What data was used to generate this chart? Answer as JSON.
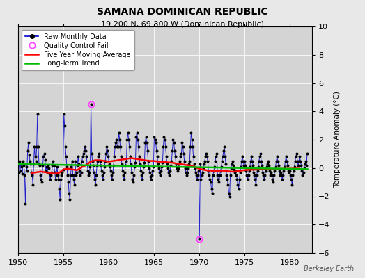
{
  "title": "SAMANA DOMINICAN REPUBLIC",
  "subtitle": "19.200 N, 69.300 W (Dominican Republic)",
  "ylabel": "Temperature Anomaly (°C)",
  "watermark": "Berkeley Earth",
  "xlim": [
    1950,
    1982.5
  ],
  "ylim": [
    -6,
    10
  ],
  "yticks": [
    -6,
    -4,
    -2,
    0,
    2,
    4,
    6,
    8,
    10
  ],
  "xticks": [
    1950,
    1955,
    1960,
    1965,
    1970,
    1975,
    1980
  ],
  "outer_bg": "#e8e8e8",
  "plot_bg": "#d4d4d4",
  "raw_color": "#0000cc",
  "dot_color": "#000000",
  "moving_avg_color": "#ff0000",
  "trend_color": "#00bb00",
  "qc_fail_color": "#ff44ff",
  "raw_data_years": [
    1950.042,
    1950.125,
    1950.208,
    1950.292,
    1950.375,
    1950.458,
    1950.542,
    1950.625,
    1950.708,
    1950.792,
    1950.875,
    1950.958,
    1951.042,
    1951.125,
    1951.208,
    1951.292,
    1951.375,
    1951.458,
    1951.542,
    1951.625,
    1951.708,
    1951.792,
    1951.875,
    1951.958,
    1952.042,
    1952.125,
    1952.208,
    1952.292,
    1952.375,
    1952.458,
    1952.542,
    1952.625,
    1952.708,
    1952.792,
    1952.875,
    1952.958,
    1953.042,
    1953.125,
    1953.208,
    1953.292,
    1953.375,
    1953.458,
    1953.542,
    1953.625,
    1953.708,
    1953.792,
    1953.875,
    1953.958,
    1954.042,
    1954.125,
    1954.208,
    1954.292,
    1954.375,
    1954.458,
    1954.542,
    1954.625,
    1954.708,
    1954.792,
    1954.875,
    1954.958,
    1955.042,
    1955.125,
    1955.208,
    1955.292,
    1955.375,
    1955.458,
    1955.542,
    1955.625,
    1955.708,
    1955.792,
    1955.875,
    1955.958,
    1956.042,
    1956.125,
    1956.208,
    1956.292,
    1956.375,
    1956.458,
    1956.542,
    1956.625,
    1956.708,
    1956.792,
    1956.875,
    1956.958,
    1957.042,
    1957.125,
    1957.208,
    1957.292,
    1957.375,
    1957.458,
    1957.542,
    1957.625,
    1957.708,
    1957.792,
    1957.875,
    1957.958,
    1958.042,
    1958.125,
    1958.208,
    1958.292,
    1958.375,
    1958.458,
    1958.542,
    1958.625,
    1958.708,
    1958.792,
    1958.875,
    1958.958,
    1959.042,
    1959.125,
    1959.208,
    1959.292,
    1959.375,
    1959.458,
    1959.542,
    1959.625,
    1959.708,
    1959.792,
    1959.875,
    1959.958,
    1960.042,
    1960.125,
    1960.208,
    1960.292,
    1960.375,
    1960.458,
    1960.542,
    1960.625,
    1960.708,
    1960.792,
    1960.875,
    1960.958,
    1961.042,
    1961.125,
    1961.208,
    1961.292,
    1961.375,
    1961.458,
    1961.542,
    1961.625,
    1961.708,
    1961.792,
    1961.875,
    1961.958,
    1962.042,
    1962.125,
    1962.208,
    1962.292,
    1962.375,
    1962.458,
    1962.542,
    1962.625,
    1962.708,
    1962.792,
    1962.875,
    1962.958,
    1963.042,
    1963.125,
    1963.208,
    1963.292,
    1963.375,
    1963.458,
    1963.542,
    1963.625,
    1963.708,
    1963.792,
    1963.875,
    1963.958,
    1964.042,
    1964.125,
    1964.208,
    1964.292,
    1964.375,
    1964.458,
    1964.542,
    1964.625,
    1964.708,
    1964.792,
    1964.875,
    1964.958,
    1965.042,
    1965.125,
    1965.208,
    1965.292,
    1965.375,
    1965.458,
    1965.542,
    1965.625,
    1965.708,
    1965.792,
    1965.875,
    1965.958,
    1966.042,
    1966.125,
    1966.208,
    1966.292,
    1966.375,
    1966.458,
    1966.542,
    1966.625,
    1966.708,
    1966.792,
    1966.875,
    1966.958,
    1967.042,
    1967.125,
    1967.208,
    1967.292,
    1967.375,
    1967.458,
    1967.542,
    1967.625,
    1967.708,
    1967.792,
    1967.875,
    1967.958,
    1968.042,
    1968.125,
    1968.208,
    1968.292,
    1968.375,
    1968.458,
    1968.542,
    1968.625,
    1968.708,
    1968.792,
    1968.875,
    1968.958,
    1969.042,
    1969.125,
    1969.208,
    1969.292,
    1969.375,
    1969.458,
    1969.542,
    1969.625,
    1969.708,
    1969.792,
    1969.875,
    1969.958,
    1970.042,
    1970.125,
    1970.208,
    1970.292,
    1970.375,
    1970.458,
    1970.542,
    1970.625,
    1970.708,
    1970.792,
    1970.875,
    1970.958,
    1971.042,
    1971.125,
    1971.208,
    1971.292,
    1971.375,
    1971.458,
    1971.542,
    1971.625,
    1971.708,
    1971.792,
    1971.875,
    1971.958,
    1972.042,
    1972.125,
    1972.208,
    1972.292,
    1972.375,
    1972.458,
    1972.542,
    1972.625,
    1972.708,
    1972.792,
    1972.875,
    1972.958,
    1973.042,
    1973.125,
    1973.208,
    1973.292,
    1973.375,
    1973.458,
    1973.542,
    1973.625,
    1973.708,
    1973.792,
    1973.875,
    1973.958,
    1974.042,
    1974.125,
    1974.208,
    1974.292,
    1974.375,
    1974.458,
    1974.542,
    1974.625,
    1974.708,
    1974.792,
    1974.875,
    1974.958,
    1975.042,
    1975.125,
    1975.208,
    1975.292,
    1975.375,
    1975.458,
    1975.542,
    1975.625,
    1975.708,
    1975.792,
    1975.875,
    1975.958,
    1976.042,
    1976.125,
    1976.208,
    1976.292,
    1976.375,
    1976.458,
    1976.542,
    1976.625,
    1976.708,
    1976.792,
    1976.875,
    1976.958,
    1977.042,
    1977.125,
    1977.208,
    1977.292,
    1977.375,
    1977.458,
    1977.542,
    1977.625,
    1977.708,
    1977.792,
    1977.875,
    1977.958,
    1978.042,
    1978.125,
    1978.208,
    1978.292,
    1978.375,
    1978.458,
    1978.542,
    1978.625,
    1978.708,
    1978.792,
    1978.875,
    1978.958,
    1979.042,
    1979.125,
    1979.208,
    1979.292,
    1979.375,
    1979.458,
    1979.542,
    1979.625,
    1979.708,
    1979.792,
    1979.875,
    1979.958,
    1980.042,
    1980.125,
    1980.208,
    1980.292,
    1980.375,
    1980.458,
    1980.542,
    1980.625,
    1980.708,
    1980.792,
    1980.875,
    1980.958,
    1981.042,
    1981.125,
    1981.208,
    1981.292,
    1981.375,
    1981.458,
    1981.542,
    1981.625,
    1981.708,
    1981.792,
    1981.875,
    1981.958
  ],
  "raw_data_values": [
    -0.3,
    0.5,
    -0.2,
    0.3,
    0.1,
    -0.4,
    0.5,
    0.2,
    -0.5,
    -2.5,
    0.1,
    -0.2,
    1.2,
    1.8,
    0.9,
    0.5,
    0.3,
    -0.3,
    -0.5,
    -1.2,
    0.3,
    1.5,
    0.8,
    0.5,
    1.5,
    3.8,
    1.5,
    0.3,
    0.2,
    -0.5,
    -0.8,
    -1.0,
    0.2,
    0.8,
    1.0,
    0.6,
    -0.2,
    0.1,
    -0.3,
    0.2,
    0.0,
    -0.4,
    -0.8,
    -0.5,
    -0.3,
    0.2,
    0.5,
    0.2,
    -0.3,
    -0.8,
    -0.5,
    0.1,
    -0.5,
    -0.8,
    -1.5,
    -2.2,
    -0.8,
    -0.5,
    -0.3,
    -0.1,
    3.8,
    3.0,
    1.5,
    0.8,
    0.1,
    -0.5,
    -1.0,
    -1.8,
    -2.2,
    -0.5,
    0.1,
    0.5,
    -0.5,
    -0.8,
    -1.2,
    0.5,
    -0.5,
    -0.3,
    0.2,
    0.8,
    0.3,
    -0.2,
    -0.5,
    -0.3,
    0.5,
    0.8,
    1.0,
    1.2,
    1.5,
    1.2,
    0.8,
    0.3,
    -0.2,
    -0.5,
    -0.3,
    0.1,
    4.5,
    1.0,
    0.5,
    0.2,
    -0.3,
    -0.8,
    -1.2,
    -0.5,
    0.2,
    0.5,
    0.8,
    1.0,
    0.5,
    0.2,
    -0.2,
    -0.5,
    -0.8,
    -0.3,
    0.1,
    0.5,
    1.0,
    1.5,
    1.2,
    0.8,
    0.3,
    0.1,
    -0.2,
    -0.5,
    -0.8,
    -0.3,
    0.2,
    0.8,
    1.5,
    1.8,
    2.0,
    1.5,
    1.5,
    2.5,
    2.0,
    1.5,
    0.8,
    0.3,
    -0.2,
    -0.5,
    -0.8,
    -0.3,
    0.2,
    0.5,
    2.0,
    2.5,
    2.0,
    1.5,
    0.8,
    0.3,
    -0.3,
    -0.8,
    -1.0,
    -0.5,
    0.1,
    0.4,
    2.2,
    2.5,
    2.0,
    1.5,
    0.8,
    0.3,
    -0.2,
    -0.5,
    -0.8,
    -0.3,
    0.1,
    0.4,
    1.8,
    2.2,
    1.8,
    1.2,
    0.5,
    0.0,
    -0.3,
    -0.6,
    -0.8,
    -0.5,
    -0.2,
    0.1,
    2.2,
    2.0,
    1.8,
    1.2,
    0.8,
    0.3,
    0.0,
    -0.3,
    -0.5,
    -0.2,
    0.1,
    0.4,
    1.5,
    2.2,
    2.0,
    1.5,
    0.8,
    0.3,
    0.0,
    -0.3,
    -0.5,
    -0.2,
    0.2,
    0.5,
    1.2,
    2.0,
    1.8,
    1.2,
    0.8,
    0.3,
    0.0,
    -0.2,
    0.0,
    0.3,
    0.5,
    0.8,
    1.0,
    1.8,
    1.5,
    1.0,
    0.5,
    0.0,
    -0.3,
    -0.5,
    -0.3,
    0.0,
    0.3,
    0.5,
    1.5,
    2.5,
    2.0,
    1.5,
    0.8,
    0.3,
    0.0,
    -0.3,
    -0.5,
    -0.8,
    -0.5,
    -0.2,
    -5.0,
    0.3,
    -0.8,
    -0.5,
    -0.3,
    0.0,
    0.3,
    0.5,
    0.8,
    1.0,
    0.8,
    0.5,
    -0.2,
    -0.5,
    -0.8,
    -1.0,
    -1.5,
    -1.8,
    -0.5,
    -0.2,
    0.1,
    0.5,
    0.8,
    1.0,
    -0.5,
    -0.8,
    -1.0,
    -0.5,
    -0.2,
    0.1,
    0.5,
    0.8,
    1.2,
    1.5,
    0.8,
    0.3,
    -0.5,
    -0.8,
    -1.2,
    -1.8,
    -2.0,
    -0.5,
    0.0,
    0.3,
    0.5,
    0.2,
    -0.1,
    -0.3,
    -0.2,
    -0.5,
    -0.8,
    -1.2,
    -1.5,
    -0.8,
    -0.3,
    0.1,
    0.5,
    0.8,
    0.5,
    0.2,
    0.5,
    0.2,
    -0.2,
    -0.5,
    -0.8,
    -0.5,
    -0.2,
    0.1,
    0.5,
    0.8,
    0.5,
    0.2,
    -0.3,
    -0.5,
    -0.8,
    -1.2,
    -0.5,
    -0.2,
    0.1,
    0.5,
    0.8,
    1.0,
    0.5,
    0.2,
    -0.3,
    -0.5,
    -0.8,
    -0.5,
    -0.2,
    0.1,
    0.3,
    0.5,
    0.2,
    -0.2,
    -0.5,
    -0.3,
    -0.5,
    -0.8,
    -1.0,
    -0.5,
    -0.2,
    0.1,
    0.5,
    0.8,
    0.5,
    0.2,
    -0.2,
    -0.5,
    -0.3,
    -0.5,
    -0.8,
    -0.5,
    -0.2,
    0.1,
    0.5,
    0.8,
    0.5,
    0.2,
    -0.2,
    -0.3,
    -0.2,
    -0.5,
    -0.8,
    -1.2,
    -0.5,
    -0.2,
    0.1,
    0.5,
    0.8,
    1.0,
    0.5,
    0.2,
    0.5,
    0.8,
    0.5,
    0.2,
    -0.2,
    -0.5,
    -0.3,
    0.0,
    0.3,
    0.5,
    0.2,
    1.0
  ],
  "qc_fail_points": [
    {
      "year": 1958.042,
      "value": 4.5
    },
    {
      "year": 1970.042,
      "value": -5.0
    }
  ],
  "moving_avg_years": [
    1951.5,
    1952.0,
    1952.5,
    1953.0,
    1953.5,
    1954.0,
    1954.5,
    1955.0,
    1955.5,
    1956.0,
    1956.5,
    1957.0,
    1957.5,
    1958.0,
    1958.5,
    1959.0,
    1959.5,
    1960.0,
    1960.5,
    1961.0,
    1961.5,
    1962.0,
    1962.5,
    1963.0,
    1963.5,
    1964.0,
    1964.5,
    1965.0,
    1965.5,
    1966.0,
    1966.5,
    1967.0,
    1967.5,
    1968.0,
    1968.5,
    1969.0,
    1969.5,
    1970.0,
    1970.5,
    1971.0,
    1971.5,
    1972.0,
    1972.5,
    1973.0,
    1973.5,
    1974.0,
    1974.5,
    1975.0,
    1975.5,
    1976.0,
    1976.5,
    1977.0,
    1977.5,
    1978.0,
    1978.5,
    1979.0,
    1979.5,
    1980.0,
    1980.5,
    1981.0
  ],
  "moving_avg_values": [
    -0.35,
    -0.3,
    -0.25,
    -0.3,
    -0.35,
    -0.4,
    -0.35,
    -0.1,
    -0.05,
    -0.1,
    -0.15,
    0.05,
    0.2,
    0.45,
    0.55,
    0.55,
    0.5,
    0.45,
    0.5,
    0.55,
    0.6,
    0.65,
    0.7,
    0.65,
    0.6,
    0.55,
    0.5,
    0.5,
    0.45,
    0.45,
    0.4,
    0.38,
    0.32,
    0.28,
    0.22,
    0.18,
    0.08,
    -0.05,
    -0.12,
    -0.18,
    -0.2,
    -0.22,
    -0.18,
    -0.2,
    -0.25,
    -0.25,
    -0.2,
    -0.15,
    -0.12,
    -0.12,
    -0.1,
    -0.1,
    -0.08,
    -0.08,
    -0.06,
    -0.06,
    -0.05,
    -0.05,
    -0.04,
    -0.04
  ],
  "trend_x": [
    1950,
    1982
  ],
  "trend_y": [
    0.28,
    -0.08
  ]
}
